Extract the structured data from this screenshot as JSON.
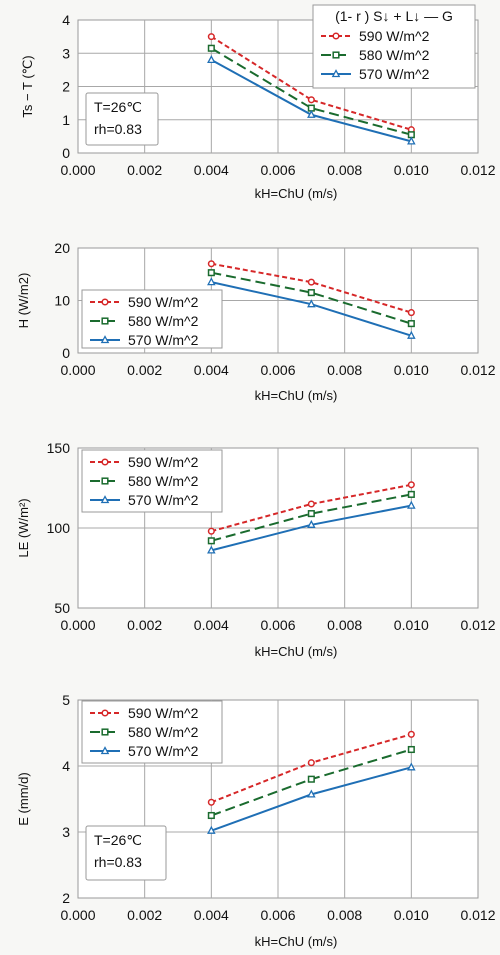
{
  "chart_data": [
    {
      "type": "line",
      "xlabel": "kH=ChU (m/s)",
      "ylabel": "Ts − T (℃)",
      "xlim": [
        0.0,
        0.012
      ],
      "ylim": [
        0,
        4
      ],
      "xticks": [
        "0.000",
        "0.002",
        "0.004",
        "0.006",
        "0.008",
        "0.010",
        "0.012"
      ],
      "yticks": [
        "0",
        "1",
        "2",
        "3",
        "4"
      ],
      "x": [
        0.004,
        0.007,
        0.01
      ],
      "series": [
        {
          "name": "590 W/m^2",
          "values": [
            3.5,
            1.6,
            0.7
          ],
          "color": "#d62728",
          "style": "dotted",
          "marker": "circle"
        },
        {
          "name": "580 W/m^2",
          "values": [
            3.15,
            1.35,
            0.55
          ],
          "color": "#1a6b2e",
          "style": "dashed",
          "marker": "square"
        },
        {
          "name": "570 W/m^2",
          "values": [
            2.8,
            1.15,
            0.35
          ],
          "color": "#1f6fb5",
          "style": "solid",
          "marker": "triangle"
        }
      ],
      "legend_title": "(1- r ) S↓ + L↓ — G",
      "legend_position": "top-right",
      "annotation": [
        "T=26℃",
        "rh=0.83"
      ],
      "grid": true
    },
    {
      "type": "line",
      "xlabel": "kH=ChU (m/s)",
      "ylabel": "H (W/m2)",
      "xlim": [
        0.0,
        0.012
      ],
      "ylim": [
        0,
        20
      ],
      "xticks": [
        "0.000",
        "0.002",
        "0.004",
        "0.006",
        "0.008",
        "0.010",
        "0.012"
      ],
      "yticks": [
        "0",
        "10",
        "20"
      ],
      "x": [
        0.004,
        0.007,
        0.01
      ],
      "series": [
        {
          "name": "590 W/m^2",
          "values": [
            17.0,
            13.5,
            7.7
          ],
          "color": "#d62728",
          "style": "dotted",
          "marker": "circle"
        },
        {
          "name": "580 W/m^2",
          "values": [
            15.3,
            11.5,
            5.6
          ],
          "color": "#1a6b2e",
          "style": "dashed",
          "marker": "square"
        },
        {
          "name": "570 W/m^2",
          "values": [
            13.5,
            9.3,
            3.3
          ],
          "color": "#1f6fb5",
          "style": "solid",
          "marker": "triangle"
        }
      ],
      "legend_position": "left",
      "grid": true
    },
    {
      "type": "line",
      "xlabel": "kH=ChU (m/s)",
      "ylabel": "LE (W/m²)",
      "xlim": [
        0.0,
        0.012
      ],
      "ylim": [
        50,
        150
      ],
      "xticks": [
        "0.000",
        "0.002",
        "0.004",
        "0.006",
        "0.008",
        "0.010",
        "0.012"
      ],
      "yticks": [
        "50",
        "100",
        "150"
      ],
      "x": [
        0.004,
        0.007,
        0.01
      ],
      "series": [
        {
          "name": "590 W/m^2",
          "values": [
            98,
            115,
            127
          ],
          "color": "#d62728",
          "style": "dotted",
          "marker": "circle"
        },
        {
          "name": "580 W/m^2",
          "values": [
            92,
            109,
            121
          ],
          "color": "#1a6b2e",
          "style": "dashed",
          "marker": "square"
        },
        {
          "name": "570 W/m^2",
          "values": [
            86,
            102,
            114
          ],
          "color": "#1f6fb5",
          "style": "solid",
          "marker": "triangle"
        }
      ],
      "legend_position": "top-left",
      "grid": true
    },
    {
      "type": "line",
      "xlabel": "kH=ChU (m/s)",
      "ylabel": "E (mm/d)",
      "xlim": [
        0.0,
        0.012
      ],
      "ylim": [
        2,
        5
      ],
      "xticks": [
        "0.000",
        "0.002",
        "0.004",
        "0.006",
        "0.008",
        "0.010",
        "0.012"
      ],
      "yticks": [
        "2",
        "3",
        "4",
        "5"
      ],
      "x": [
        0.004,
        0.007,
        0.01
      ],
      "series": [
        {
          "name": "590 W/m^2",
          "values": [
            3.45,
            4.05,
            4.48
          ],
          "color": "#d62728",
          "style": "dotted",
          "marker": "circle"
        },
        {
          "name": "580 W/m^2",
          "values": [
            3.25,
            3.8,
            4.25
          ],
          "color": "#1a6b2e",
          "style": "dashed",
          "marker": "square"
        },
        {
          "name": "570 W/m^2",
          "values": [
            3.02,
            3.57,
            3.98
          ],
          "color": "#1f6fb5",
          "style": "solid",
          "marker": "triangle"
        }
      ],
      "legend_position": "top-left",
      "annotation": [
        "T=26℃",
        "rh=0.83"
      ],
      "grid": true
    }
  ]
}
